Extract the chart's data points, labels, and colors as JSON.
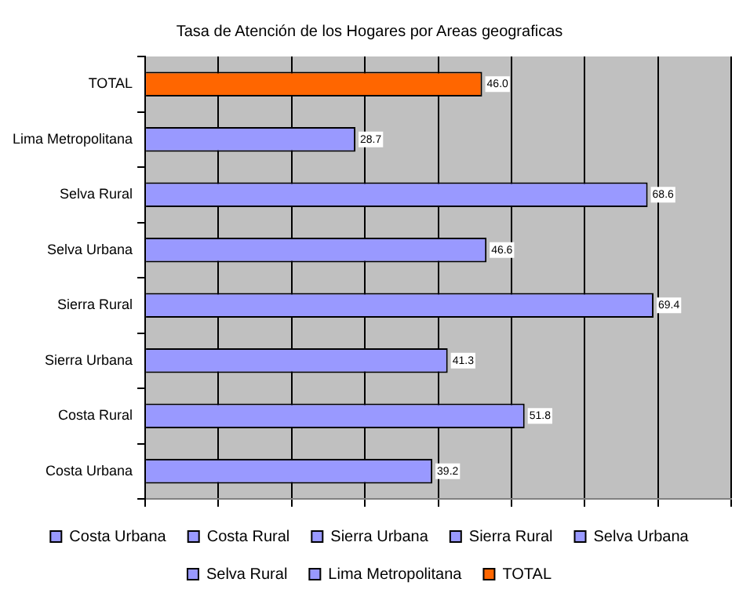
{
  "chart_data": {
    "type": "bar",
    "orientation": "horizontal",
    "title": "Tasa de Atención de los Hogares por Areas geograficas",
    "categories": [
      "TOTAL",
      "Lima Metropolitana",
      "Selva Rural",
      "Selva Urbana",
      "Sierra Rural",
      "Sierra Urbana",
      "Costa Rural",
      "Costa Urbana"
    ],
    "series": [
      {
        "name": "Costa Urbana",
        "color": "#9999ff",
        "values": [
          null,
          null,
          null,
          null,
          null,
          null,
          null,
          39.2
        ]
      },
      {
        "name": "Costa Rural",
        "color": "#9999ff",
        "values": [
          null,
          null,
          null,
          null,
          null,
          null,
          51.8,
          null
        ]
      },
      {
        "name": "Sierra Urbana",
        "color": "#9999ff",
        "values": [
          null,
          null,
          null,
          null,
          null,
          41.3,
          null,
          null
        ]
      },
      {
        "name": "Sierra Rural",
        "color": "#9999ff",
        "values": [
          null,
          null,
          null,
          null,
          69.4,
          null,
          null,
          null
        ]
      },
      {
        "name": "Selva Urbana",
        "color": "#9999ff",
        "values": [
          null,
          null,
          null,
          46.6,
          null,
          null,
          null,
          null
        ]
      },
      {
        "name": "Selva Rural",
        "color": "#9999ff",
        "values": [
          null,
          null,
          68.6,
          null,
          null,
          null,
          null,
          null
        ]
      },
      {
        "name": "Lima Metropolitana",
        "color": "#9999ff",
        "values": [
          null,
          28.7,
          null,
          null,
          null,
          null,
          null,
          null
        ]
      },
      {
        "name": "TOTAL",
        "color": "#ff6600",
        "values": [
          46.0,
          null,
          null,
          null,
          null,
          null,
          null,
          null
        ],
        "value_labels": [
          "46.0",
          null,
          null,
          null,
          null,
          null,
          null,
          null
        ]
      }
    ],
    "xlim": [
      0,
      80
    ],
    "xticks": [
      {
        "value": 0,
        "label": null
      },
      {
        "value": 10,
        "label": null
      },
      {
        "value": 20,
        "label": null
      },
      {
        "value": 30,
        "label": null
      },
      {
        "value": 40,
        "label": null
      },
      {
        "value": 50,
        "label": null
      },
      {
        "value": 60,
        "label": null
      },
      {
        "value": 70,
        "label": null
      },
      {
        "value": 80,
        "label": null
      }
    ],
    "tick_labels": "y",
    "grid": "x",
    "legend": "bottom",
    "data_labels": true
  }
}
